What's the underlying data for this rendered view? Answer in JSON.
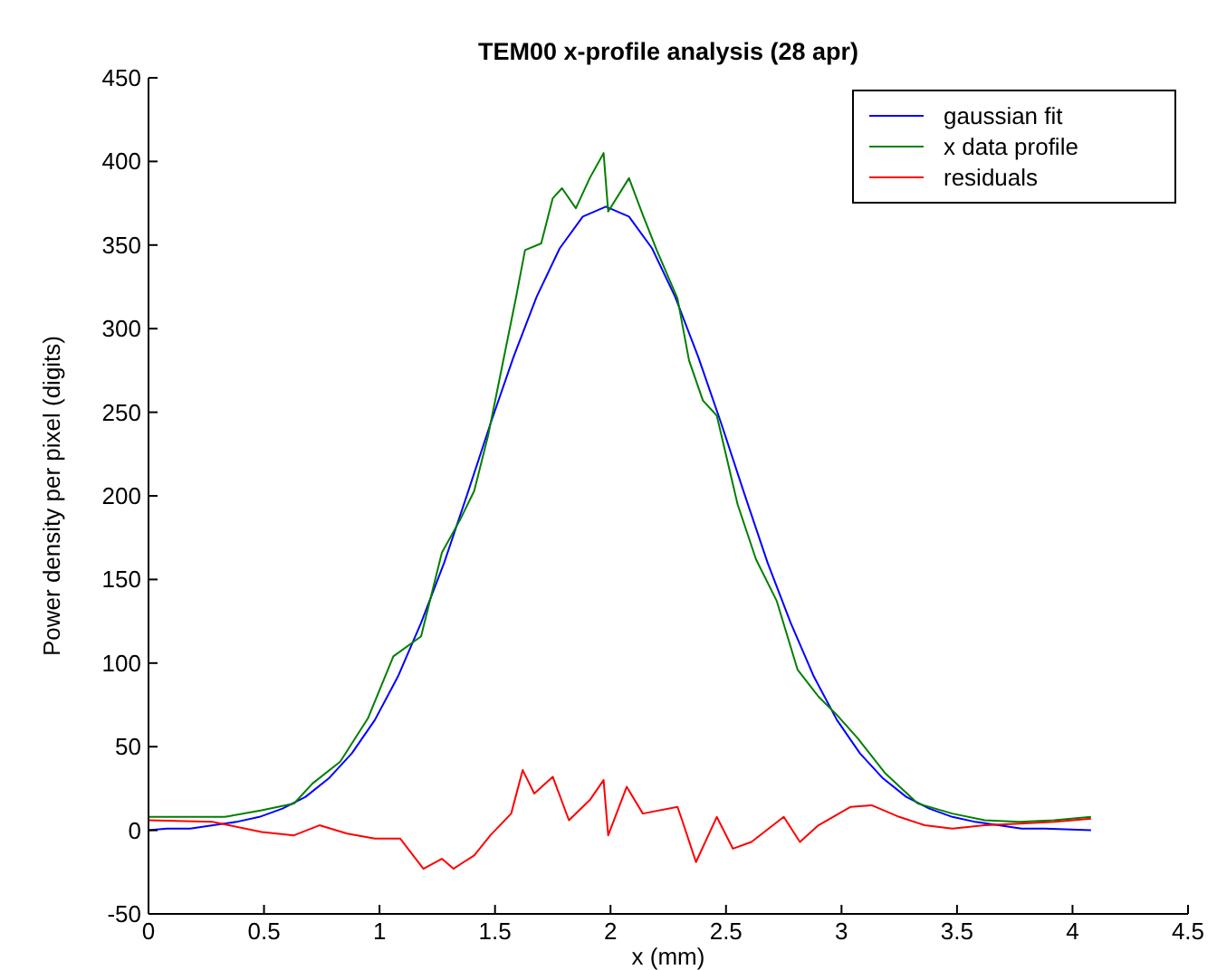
{
  "chart_data": {
    "type": "line",
    "title": "TEM00 x-profile analysis (28 apr)",
    "xlabel": "x (mm)",
    "ylabel": "Power density per pixel (digits)",
    "xlim": [
      0,
      4.5
    ],
    "xticks": [
      0,
      0.5,
      1,
      1.5,
      2,
      2.5,
      3,
      3.5,
      4,
      4.5
    ],
    "ylim": [
      -50,
      450
    ],
    "yticks": [
      -50,
      0,
      50,
      100,
      150,
      200,
      250,
      300,
      350,
      400,
      450
    ],
    "grid": false,
    "legend": "top right",
    "series": [
      {
        "name": "gaussian fit",
        "color": "#0000ff",
        "x": [
          0,
          0.08,
          0.18,
          0.28,
          0.38,
          0.48,
          0.58,
          0.68,
          0.78,
          0.88,
          0.98,
          1.08,
          1.18,
          1.28,
          1.38,
          1.48,
          1.58,
          1.68,
          1.78,
          1.88,
          1.98,
          2.08,
          2.18,
          2.28,
          2.38,
          2.48,
          2.58,
          2.68,
          2.78,
          2.88,
          2.98,
          3.08,
          3.18,
          3.28,
          3.38,
          3.48,
          3.58,
          3.68,
          3.78,
          3.88,
          4.08
        ],
        "values": [
          0,
          1,
          1,
          3,
          5,
          8,
          13,
          20,
          31,
          46,
          66,
          92,
          124,
          160,
          201,
          243,
          283,
          319,
          348,
          367,
          373,
          367,
          348,
          319,
          283,
          243,
          201,
          160,
          124,
          92,
          66,
          46,
          31,
          20,
          13,
          8,
          5,
          3,
          1,
          1,
          0
        ]
      },
      {
        "name": "x data profile",
        "color": "#008000",
        "x": [
          0,
          0.16,
          0.33,
          0.49,
          0.63,
          0.71,
          0.83,
          0.95,
          1.06,
          1.18,
          1.27,
          1.35,
          1.41,
          1.47,
          1.53,
          1.59,
          1.63,
          1.7,
          1.75,
          1.79,
          1.85,
          1.91,
          1.97,
          1.99,
          2.08,
          2.14,
          2.2,
          2.29,
          2.34,
          2.4,
          2.46,
          2.55,
          2.63,
          2.72,
          2.81,
          2.9,
          2.98,
          3.07,
          3.19,
          3.33,
          3.48,
          3.62,
          3.77,
          3.92,
          4.08
        ],
        "values": [
          8,
          8,
          8,
          12,
          16,
          28,
          41,
          67,
          104,
          116,
          166,
          186,
          203,
          236,
          277,
          318,
          347,
          351,
          378,
          384,
          372,
          390,
          405,
          370,
          390,
          368,
          347,
          318,
          281,
          257,
          248,
          195,
          162,
          137,
          96,
          80,
          69,
          55,
          34,
          16,
          10,
          6,
          5,
          6,
          8
        ]
      },
      {
        "name": "residuals",
        "color": "#ff0000",
        "x": [
          0,
          0.28,
          0.49,
          0.63,
          0.74,
          0.86,
          0.98,
          1.09,
          1.19,
          1.27,
          1.32,
          1.41,
          1.48,
          1.57,
          1.62,
          1.67,
          1.75,
          1.82,
          1.91,
          1.97,
          1.99,
          2.07,
          2.14,
          2.29,
          2.31,
          2.37,
          2.46,
          2.53,
          2.61,
          2.75,
          2.82,
          2.9,
          3.04,
          3.13,
          3.25,
          3.36,
          3.48,
          3.62,
          3.77,
          3.92,
          4.08
        ],
        "values": [
          6,
          5,
          -1,
          -3,
          3,
          -2,
          -5,
          -5,
          -23,
          -17,
          -23,
          -15,
          -3,
          10,
          36,
          22,
          32,
          6,
          18,
          30,
          -3,
          26,
          10,
          14,
          6,
          -19,
          8,
          -11,
          -7,
          8,
          -7,
          3,
          14,
          15,
          8,
          3,
          1,
          3,
          4,
          5,
          7
        ]
      }
    ]
  }
}
